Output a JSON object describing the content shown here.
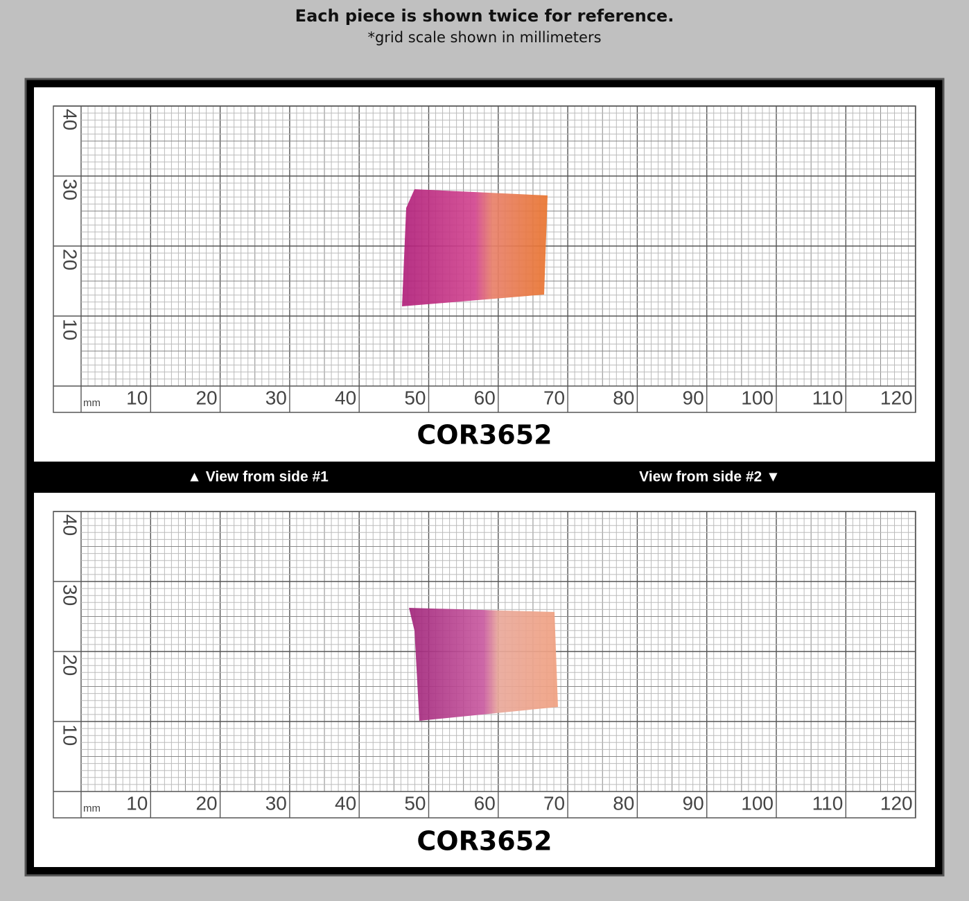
{
  "header": {
    "title": "Each piece is shown twice for reference.",
    "subtitle": "*grid scale shown in millimeters"
  },
  "panels": [
    {
      "label": "COR3652",
      "unit": "mm",
      "x_labels": [
        "10",
        "20",
        "30",
        "40",
        "50",
        "60",
        "70",
        "80",
        "90",
        "100",
        "110",
        "120"
      ],
      "y_labels": [
        "10",
        "20",
        "30",
        "40"
      ]
    },
    {
      "label": "COR3652",
      "unit": "mm",
      "x_labels": [
        "10",
        "20",
        "30",
        "40",
        "50",
        "60",
        "70",
        "80",
        "90",
        "100",
        "110",
        "120"
      ],
      "y_labels": [
        "10",
        "20",
        "30",
        "40"
      ]
    }
  ],
  "divider": {
    "left": "▲ View from side #1",
    "right": "View from side #2 ▼"
  }
}
